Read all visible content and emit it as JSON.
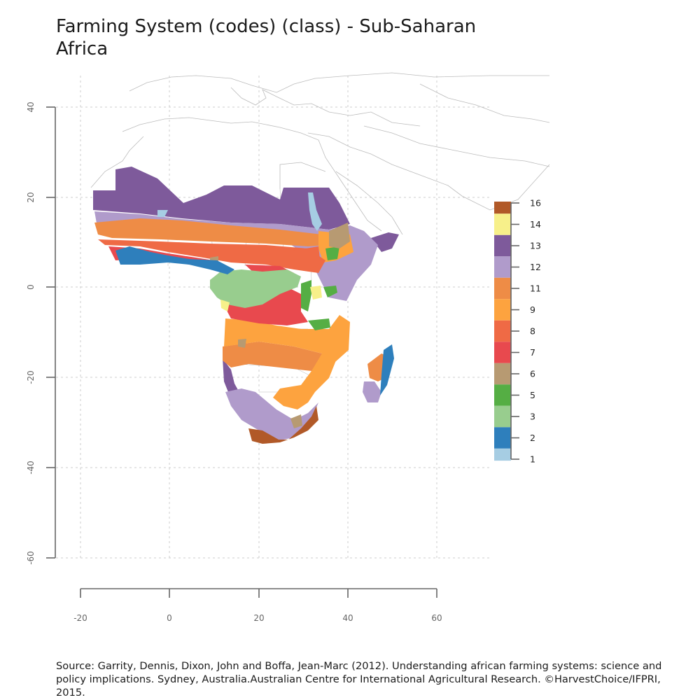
{
  "title": "Farming System (codes) (class) - Sub-Saharan Africa",
  "source": "Source: Garrity, Dennis, Dixon, John and Boffa, Jean-Marc (2012). Understanding african farming systems: science and policy implications. Sydney, Australia.Australian Centre for International Agricultural Research. ©HarvestChoice/IFPRI, 2015.",
  "axes": {
    "x_ticks": [
      "-20",
      "0",
      "20",
      "40",
      "60"
    ],
    "y_ticks": [
      "40",
      "20",
      "0",
      "-20",
      "-40",
      "-60"
    ],
    "x_range": [
      -20,
      60
    ],
    "y_range": [
      -60,
      40
    ],
    "grid": "dotted"
  },
  "legend": {
    "placement": "right",
    "classes": [
      {
        "code": "16",
        "label": "16",
        "color": "#b15928"
      },
      {
        "code": "14",
        "label": "14",
        "color": "#f7f08a"
      },
      {
        "code": "13",
        "label": "13",
        "color": "#7e5a9b"
      },
      {
        "code": "12",
        "label": "12",
        "color": "#b09bcb"
      },
      {
        "code": "11",
        "label": "11",
        "color": "#ee8c46"
      },
      {
        "code": "9",
        "label": "9",
        "color": "#fda33f"
      },
      {
        "code": "8",
        "label": "8",
        "color": "#ef6a45"
      },
      {
        "code": "7",
        "label": "7",
        "color": "#e8494e"
      },
      {
        "code": "6",
        "label": "6",
        "color": "#b79a72"
      },
      {
        "code": "5",
        "label": "5",
        "color": "#55ae44"
      },
      {
        "code": "3",
        "label": "3",
        "color": "#98cd8e"
      },
      {
        "code": "2",
        "label": "2",
        "color": "#2e7fbc"
      },
      {
        "code": "1",
        "label": "1",
        "color": "#a6cde3"
      }
    ]
  }
}
